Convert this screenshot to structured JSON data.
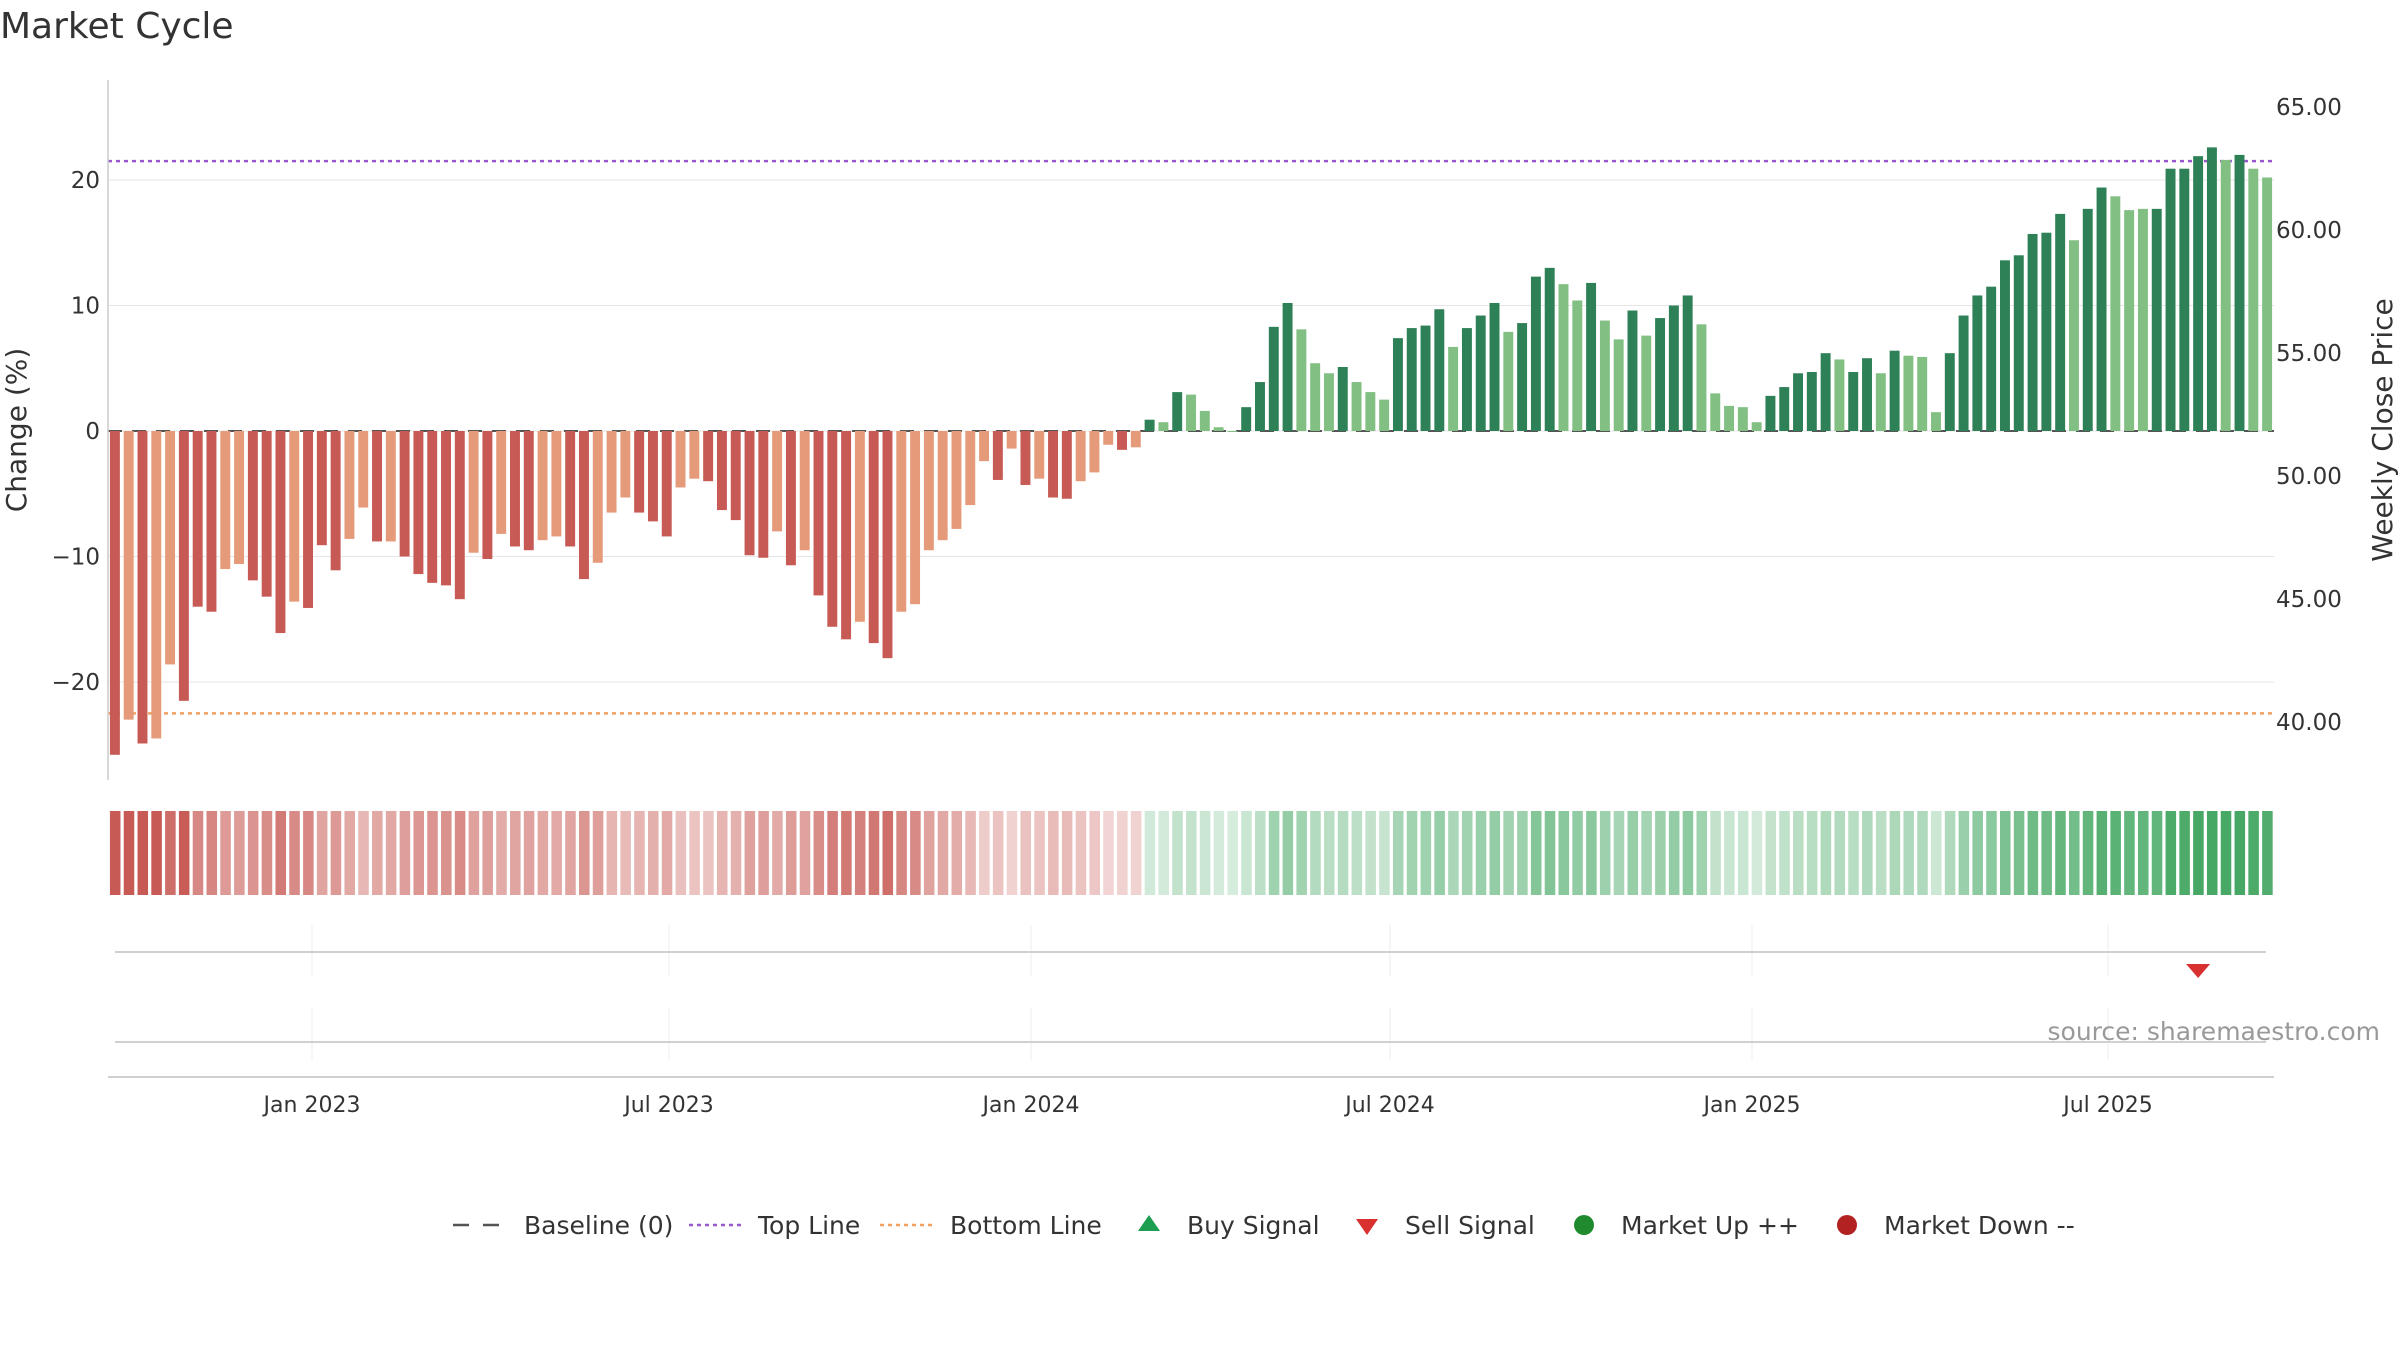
{
  "chart_data": {
    "type": "bar",
    "title": "Market Cycle",
    "ylabel_left": "Change (%)",
    "ylabel_right": "Weekly Close Price",
    "ylim_left": [
      -28,
      28
    ],
    "yticks_left": [
      -20,
      -10,
      0,
      10,
      20
    ],
    "yticks_left_labels": [
      "−20",
      "−10",
      "0",
      "10",
      "20"
    ],
    "ylim_right": [
      37.0,
      65.0
    ],
    "yticks_right": [
      40,
      45,
      50,
      55,
      60,
      65
    ],
    "yticks_right_labels": [
      "40.00",
      "45.00",
      "50.00",
      "55.00",
      "60.00",
      "65.00"
    ],
    "top_line": 21.5,
    "bottom_line": -22.5,
    "x_dates": [
      "Jan 2023",
      "Jul 2023",
      "Jan 2024",
      "Jul 2024",
      "Jan 2025",
      "Jul 2025"
    ],
    "change_values": [
      -25.8,
      -23.0,
      -24.9,
      -24.5,
      -18.6,
      -21.5,
      -14.0,
      -14.4,
      -11.0,
      -10.6,
      -11.9,
      -13.2,
      -16.1,
      -13.6,
      -14.1,
      -9.1,
      -11.1,
      -8.6,
      -6.1,
      -8.8,
      -8.8,
      -10.0,
      -11.4,
      -12.1,
      -12.3,
      -13.4,
      -9.7,
      -10.2,
      -8.2,
      -9.2,
      -9.5,
      -8.7,
      -8.4,
      -9.2,
      -11.8,
      -10.5,
      -6.5,
      -5.3,
      -6.5,
      -7.2,
      -8.4,
      -4.5,
      -3.8,
      -4.0,
      -6.3,
      -7.1,
      -9.9,
      -10.1,
      -8.0,
      -10.7,
      -9.5,
      -13.1,
      -15.6,
      -16.6,
      -15.2,
      -16.9,
      -18.1,
      -14.4,
      -13.8,
      -9.5,
      -8.7,
      -7.8,
      -5.9,
      -2.4,
      -3.9,
      -1.4,
      -4.3,
      -3.8,
      -5.3,
      -5.4,
      -4.0,
      -3.3,
      -1.1,
      -1.5,
      -1.3,
      0.9,
      0.7,
      3.1,
      2.9,
      1.6,
      0.3,
      0.0,
      1.9,
      3.9,
      8.3,
      10.2,
      8.1,
      5.4,
      4.6,
      5.1,
      3.9,
      3.1,
      2.5,
      7.4,
      8.2,
      8.4,
      9.7,
      6.7,
      8.2,
      9.2,
      10.2,
      7.9,
      8.6,
      12.3,
      13.0,
      11.7,
      10.4,
      11.8,
      8.8,
      7.3,
      9.6,
      7.6,
      9.0,
      10.0,
      10.8,
      8.5,
      3.0,
      2.0,
      1.9,
      0.7,
      2.8,
      3.5,
      4.6,
      4.7,
      6.2,
      5.7,
      4.7,
      5.8,
      4.6,
      6.4,
      6.0,
      5.9,
      1.5,
      6.2,
      9.2,
      10.8,
      11.5,
      13.6,
      14.0,
      15.7,
      15.8,
      17.3,
      15.2,
      17.7,
      19.4,
      18.7,
      17.6,
      17.7,
      17.7,
      20.9,
      20.9,
      21.9,
      22.6,
      21.6,
      22.0,
      20.9,
      20.2
    ],
    "bar_colors": [
      "#c75a54",
      "#e59b7a",
      "#c75a54",
      "#e59b7a",
      "#e59b7a",
      "#c75a54",
      "#c75a54",
      "#c75a54",
      "#e59b7a",
      "#e59b7a",
      "#c75a54",
      "#c75a54",
      "#c75a54",
      "#e59b7a",
      "#c75a54",
      "#c75a54",
      "#c75a54",
      "#e59b7a",
      "#e59b7a",
      "#c75a54",
      "#e59b7a",
      "#c75a54",
      "#c75a54",
      "#c75a54",
      "#c75a54",
      "#c75a54",
      "#e59b7a",
      "#c75a54",
      "#e59b7a",
      "#c75a54",
      "#c75a54",
      "#e59b7a",
      "#e59b7a",
      "#c75a54",
      "#c75a54",
      "#e59b7a",
      "#e59b7a",
      "#e59b7a",
      "#c75a54",
      "#c75a54",
      "#c75a54",
      "#e59b7a",
      "#e59b7a",
      "#c75a54",
      "#c75a54",
      "#c75a54",
      "#c75a54",
      "#c75a54",
      "#e59b7a",
      "#c75a54",
      "#e59b7a",
      "#c75a54",
      "#c75a54",
      "#c75a54",
      "#e59b7a",
      "#c75a54",
      "#c75a54",
      "#e59b7a",
      "#e59b7a",
      "#e59b7a",
      "#e59b7a",
      "#e59b7a",
      "#e59b7a",
      "#e59b7a",
      "#c75a54",
      "#e59b7a",
      "#c75a54",
      "#e59b7a",
      "#c75a54",
      "#c75a54",
      "#e59b7a",
      "#e59b7a",
      "#e59b7a",
      "#c75a54",
      "#e59b7a",
      "#2e8057",
      "#81bf83",
      "#2e8057",
      "#81bf83",
      "#81bf83",
      "#81bf83",
      "#81bf83",
      "#2e8057",
      "#2e8057",
      "#2e8057",
      "#2e8057",
      "#81bf83",
      "#81bf83",
      "#81bf83",
      "#2e8057",
      "#81bf83",
      "#81bf83",
      "#81bf83",
      "#2e8057",
      "#2e8057",
      "#2e8057",
      "#2e8057",
      "#81bf83",
      "#2e8057",
      "#2e8057",
      "#2e8057",
      "#81bf83",
      "#2e8057",
      "#2e8057",
      "#2e8057",
      "#81bf83",
      "#81bf83",
      "#2e8057",
      "#81bf83",
      "#81bf83",
      "#2e8057",
      "#81bf83",
      "#2e8057",
      "#2e8057",
      "#2e8057",
      "#81bf83",
      "#81bf83",
      "#81bf83",
      "#81bf83",
      "#81bf83",
      "#2e8057",
      "#2e8057",
      "#2e8057",
      "#2e8057",
      "#2e8057",
      "#81bf83",
      "#2e8057",
      "#2e8057",
      "#81bf83",
      "#2e8057",
      "#81bf83",
      "#81bf83",
      "#81bf83",
      "#2e8057",
      "#2e8057",
      "#2e8057",
      "#2e8057",
      "#2e8057",
      "#2e8057",
      "#2e8057",
      "#2e8057",
      "#2e8057",
      "#81bf83",
      "#2e8057",
      "#2e8057",
      "#81bf83",
      "#81bf83",
      "#81bf83",
      "#2e8057",
      "#2e8057",
      "#2e8057",
      "#2e8057",
      "#2e8057",
      "#81bf83",
      "#2e8057",
      "#81bf83",
      "#81bf83"
    ],
    "sell_signals": [
      151
    ],
    "legend": [
      {
        "label": "Baseline (0)",
        "symbol": "dash",
        "color": "#555555"
      },
      {
        "label": "Top Line",
        "symbol": "dotted",
        "color": "#9b59d0"
      },
      {
        "label": "Bottom Line",
        "symbol": "dotted",
        "color": "#f0a060"
      },
      {
        "label": "Buy Signal",
        "symbol": "triangle-up",
        "color": "#1e9e50"
      },
      {
        "label": "Sell Signal",
        "symbol": "triangle-down",
        "color": "#d93030"
      },
      {
        "label": "Market Up ++",
        "symbol": "circle",
        "color": "#1f8a2e"
      },
      {
        "label": "Market Down --",
        "symbol": "circle",
        "color": "#b22222"
      }
    ],
    "grid": true,
    "legend_position": "bottom"
  },
  "source": "source: sharemaestro.com",
  "colors": {
    "down_dark": "#c75a54",
    "down_light": "#e59b7a",
    "up_dark": "#2e8057",
    "up_light": "#81bf83",
    "top_line": "#9b59d0",
    "bottom_line": "#f0a060"
  }
}
